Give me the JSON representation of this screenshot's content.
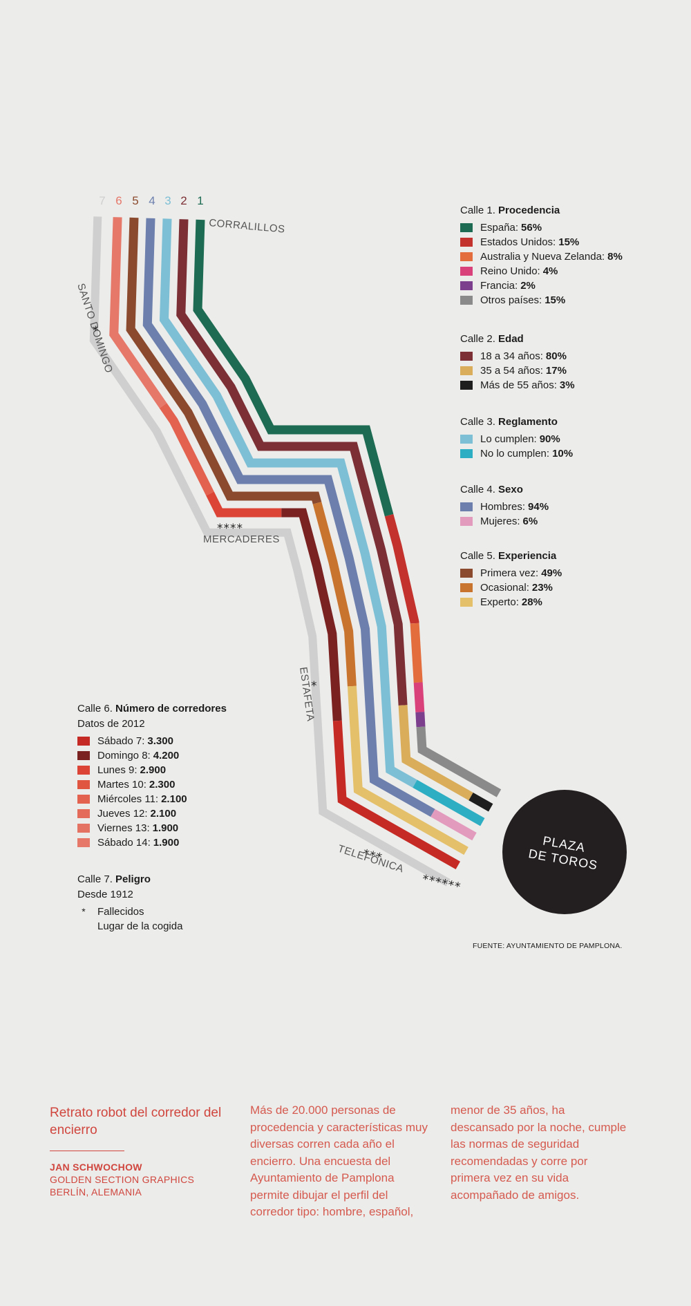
{
  "diagram": {
    "street_numbers": [
      "7",
      "6",
      "5",
      "4",
      "3",
      "2",
      "1"
    ],
    "street_names": {
      "corralillos": "CORRALILLOS",
      "santo_domingo": "SANTO DOMINGO",
      "mercaderes": "MERCADERES",
      "estafeta": "ESTAFETA",
      "telefonica": "TELEFÓNICA"
    },
    "death_markers": {
      "santo_domingo": "*",
      "mercaderes": "****",
      "estafeta": "*",
      "telefonica": "***",
      "plaza": "******"
    },
    "plaza_label": [
      "PLAZA",
      "DE TOROS"
    ],
    "lane_colors": {
      "lane1": "#1d6b52",
      "lane2": "#7c2f35",
      "lane3": "#7dbfd5",
      "lane4": "#6c7fad",
      "lane5": "#8b4a2e",
      "lane6": "#e6786a",
      "lane7": "#cfcfcf",
      "runners": "#c43028"
    },
    "lane_segments": {
      "lane1": [
        {
          "color": "#1d6b52",
          "share": 0.56
        },
        {
          "color": "#c3322c",
          "share": 0.15
        },
        {
          "color": "#e36d3c",
          "share": 0.08
        },
        {
          "color": "#d8417a",
          "share": 0.04
        },
        {
          "color": "#7b3f8e",
          "share": 0.02
        },
        {
          "color": "#8a8a8a",
          "share": 0.15
        }
      ],
      "lane2": [
        {
          "color": "#7c2f35",
          "share": 0.8
        },
        {
          "color": "#d9ad5a",
          "share": 0.17
        },
        {
          "color": "#1e1e1e",
          "share": 0.03
        }
      ],
      "lane3": [
        {
          "color": "#7dbfd5",
          "share": 0.9
        },
        {
          "color": "#2eaec2",
          "share": 0.1
        }
      ],
      "lane4": [
        {
          "color": "#6c7fad",
          "share": 0.94
        },
        {
          "color": "#e29abd",
          "share": 0.06
        }
      ],
      "lane5": [
        {
          "color": "#8b4a2e",
          "share": 0.49
        },
        {
          "color": "#c8742e",
          "share": 0.23
        },
        {
          "color": "#e4c06a",
          "share": 0.28
        }
      ],
      "lane6": [
        {
          "color": "#e6786a",
          "share": 0.245
        },
        {
          "color": "#e3614f",
          "share": 0.12
        },
        {
          "color": "#dc4535",
          "share": 0.1
        },
        {
          "color": "#7a2222",
          "share": 0.28
        },
        {
          "color": "#c62a24",
          "share": 0.255
        }
      ]
    }
  },
  "legends": [
    {
      "title_prefix": "Calle 1.",
      "title": "Procedencia",
      "items": [
        {
          "color": "#1d6b52",
          "label": "España:",
          "value": "56%"
        },
        {
          "color": "#c3322c",
          "label": "Estados Unidos:",
          "value": "15%"
        },
        {
          "color": "#e36d3c",
          "label": "Australia y Nueva Zelanda:",
          "value": "8%"
        },
        {
          "color": "#d8417a",
          "label": "Reino Unido:",
          "value": "4%"
        },
        {
          "color": "#7b3f8e",
          "label": "Francia:",
          "value": "2%"
        },
        {
          "color": "#8a8a8a",
          "label": "Otros países:",
          "value": "15%"
        }
      ]
    },
    {
      "title_prefix": "Calle 2.",
      "title": "Edad",
      "items": [
        {
          "color": "#7c2f35",
          "label": "18 a 34 años:",
          "value": "80%"
        },
        {
          "color": "#d9ad5a",
          "label": "35 a 54 años:",
          "value": "17%"
        },
        {
          "color": "#1e1e1e",
          "label": "Más de 55 años:",
          "value": "3%"
        }
      ]
    },
    {
      "title_prefix": "Calle 3.",
      "title": "Reglamento",
      "items": [
        {
          "color": "#7dbfd5",
          "label": "Lo cumplen:",
          "value": "90%"
        },
        {
          "color": "#2eaec2",
          "label": "No lo cumplen:",
          "value": "10%"
        }
      ]
    },
    {
      "title_prefix": "Calle 4.",
      "title": "Sexo",
      "items": [
        {
          "color": "#6c7fad",
          "label": "Hombres:",
          "value": "94%"
        },
        {
          "color": "#e29abd",
          "label": "Mujeres:",
          "value": "6%"
        }
      ]
    },
    {
      "title_prefix": "Calle 5.",
      "title": "Experiencia",
      "items": [
        {
          "color": "#8b4a2e",
          "label": "Primera vez:",
          "value": "49%"
        },
        {
          "color": "#c8742e",
          "label": "Ocasional:",
          "value": "23%"
        },
        {
          "color": "#e4c06a",
          "label": "Experto:",
          "value": "28%"
        }
      ]
    },
    {
      "title_prefix": "Calle 6.",
      "title": "Número de corredores",
      "subtitle": "Datos de 2012",
      "items": [
        {
          "color": "#c62a24",
          "label": "Sábado 7:",
          "value": "3.300"
        },
        {
          "color": "#7a2222",
          "label": "Domingo 8:",
          "value": "4.200"
        },
        {
          "color": "#dc4535",
          "label": "Lunes 9:",
          "value": "2.900"
        },
        {
          "color": "#e0553f",
          "label": "Martes 10:",
          "value": "2.300"
        },
        {
          "color": "#e3614f",
          "label": "Miércoles 11:",
          "value": "2.100"
        },
        {
          "color": "#e46a5a",
          "label": "Jueves 12:",
          "value": "2.100"
        },
        {
          "color": "#e57364",
          "label": "Viernes 13:",
          "value": "1.900"
        },
        {
          "color": "#e6786a",
          "label": "Sábado 14:",
          "value": "1.900"
        }
      ]
    },
    {
      "title_prefix": "Calle 7.",
      "title": "Peligro",
      "subtitle": "Desde 1912",
      "star": "*",
      "lines": [
        "Fallecidos",
        "Lugar de la cogida"
      ]
    }
  ],
  "source": "FUENTE: AYUNTAMIENTO DE PAMPLONA.",
  "footer": {
    "title": "Retrato robot del corredor del encierro",
    "author": "JAN SCHWOCHOW",
    "studio": "GOLDEN SECTION GRAPHICS",
    "location": "BERLÍN, ALEMANIA",
    "text_col1": "Más de 20.000 personas de procedencia y características muy diversas corren cada año el encierro. Una encuesta del Ayuntamiento de Pamplona permite dibujar el perfil del corredor tipo: hombre, español,",
    "text_col2": "menor de 35 años, ha descansado por la noche, cumple las normas de seguridad recomendadas y corre por primera vez en su vida acompañado de amigos."
  }
}
